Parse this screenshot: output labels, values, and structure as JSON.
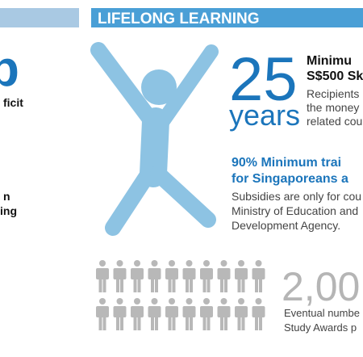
{
  "left_column": {
    "big_figure": "b",
    "lines": [
      "ficit",
      "n",
      "ing"
    ]
  },
  "section": {
    "header": "LIFELONG LEARNING",
    "item_1": {
      "number": "25",
      "unit": "years",
      "heading": [
        "Minimu",
        "S$500 Sk"
      ],
      "text": [
        "Recipients",
        "the money",
        "related cou"
      ]
    },
    "item_2": {
      "heading": [
        "90% Minimum trai",
        "for Singaporeans a"
      ],
      "text": [
        "Subsidies are only for cou",
        "Ministry of Education and",
        "Development Agency."
      ]
    },
    "item_3": {
      "number": "2,00",
      "text": [
        "Eventual numbe",
        "Study Awards p"
      ]
    }
  }
}
